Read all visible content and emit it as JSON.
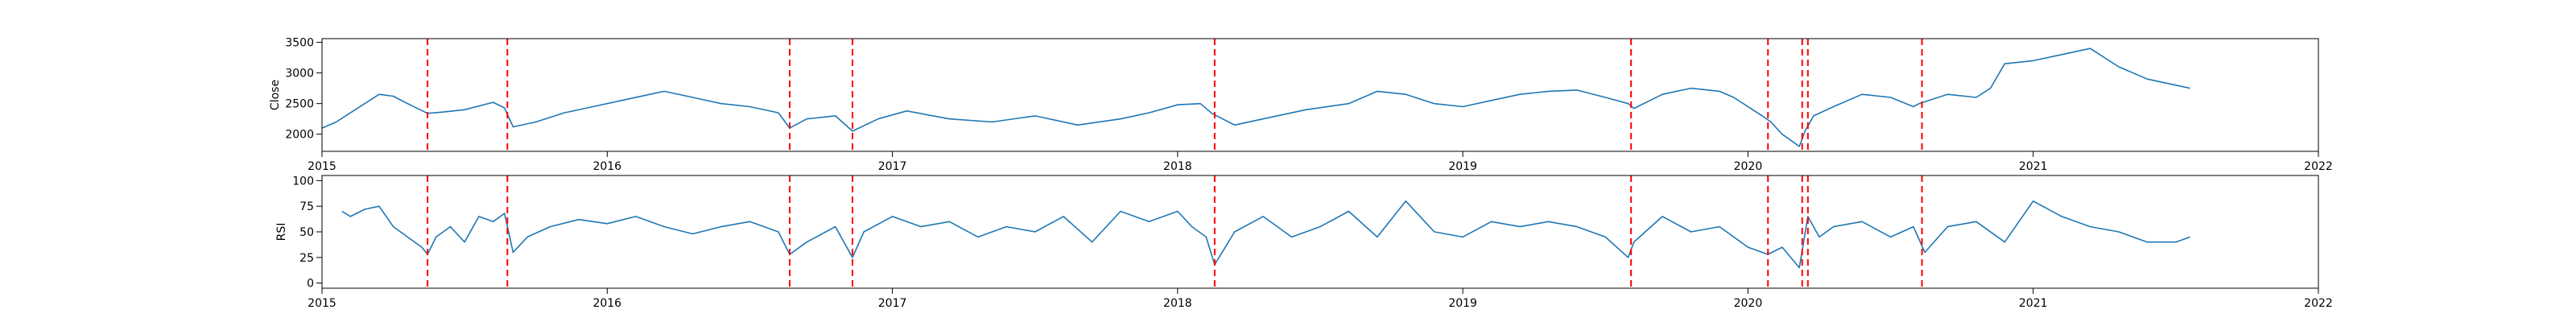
{
  "chart_data": [
    {
      "type": "line",
      "ylabel": "Close",
      "xlim": [
        2015.0,
        2022.0
      ],
      "ylim": [
        1720,
        3560
      ],
      "xticks": [
        2015,
        2016,
        2017,
        2018,
        2019,
        2020,
        2021,
        2022
      ],
      "xtick_labels": [
        "2015",
        "2016",
        "2017",
        "2018",
        "2019",
        "2020",
        "2021",
        "2022"
      ],
      "yticks": [
        2000,
        2500,
        3000,
        3500
      ],
      "ytick_labels": [
        "2000",
        "2500",
        "3000",
        "3500"
      ],
      "grid": false,
      "series": [
        {
          "color": "#1f77b4",
          "x": [
            2015.0,
            2015.05,
            2015.1,
            2015.15,
            2015.2,
            2015.25,
            2015.3,
            2015.37,
            2015.42,
            2015.5,
            2015.6,
            2015.64,
            2015.67,
            2015.75,
            2015.85,
            2015.95,
            2016.05,
            2016.15,
            2016.2,
            2016.3,
            2016.4,
            2016.5,
            2016.6,
            2016.64,
            2016.7,
            2016.8,
            2016.86,
            2016.95,
            2017.05,
            2017.2,
            2017.35,
            2017.5,
            2017.65,
            2017.8,
            2017.9,
            2018.0,
            2018.08,
            2018.12,
            2018.2,
            2018.3,
            2018.45,
            2018.6,
            2018.7,
            2018.8,
            2018.9,
            2019.0,
            2019.1,
            2019.2,
            2019.3,
            2019.4,
            2019.5,
            2019.58,
            2019.6,
            2019.7,
            2019.8,
            2019.9,
            2019.95,
            2020.05,
            2020.08,
            2020.12,
            2020.18,
            2020.2,
            2020.23,
            2020.3,
            2020.4,
            2020.5,
            2020.58,
            2020.6,
            2020.7,
            2020.8,
            2020.85,
            2020.9,
            2021.0,
            2021.1,
            2021.2,
            2021.3,
            2021.4,
            2021.5,
            2021.55
          ],
          "y": [
            2100,
            2200,
            2350,
            2500,
            2650,
            2620,
            2500,
            2340,
            2360,
            2400,
            2520,
            2430,
            2120,
            2200,
            2350,
            2450,
            2550,
            2650,
            2700,
            2600,
            2500,
            2450,
            2350,
            2100,
            2250,
            2300,
            2050,
            2250,
            2380,
            2250,
            2200,
            2300,
            2150,
            2250,
            2350,
            2480,
            2500,
            2340,
            2150,
            2250,
            2400,
            2500,
            2700,
            2650,
            2500,
            2450,
            2550,
            2650,
            2700,
            2720,
            2600,
            2500,
            2420,
            2650,
            2750,
            2700,
            2600,
            2300,
            2200,
            2000,
            1800,
            2050,
            2300,
            2450,
            2650,
            2600,
            2450,
            2500,
            2650,
            2600,
            2750,
            3150,
            3200,
            3300,
            3400,
            3100,
            2900,
            2800,
            2750
          ]
        }
      ]
    },
    {
      "type": "line",
      "ylabel": "RSI",
      "xlim": [
        2015.0,
        2022.0
      ],
      "ylim": [
        -5,
        105
      ],
      "xticks": [
        2015,
        2016,
        2017,
        2018,
        2019,
        2020,
        2021,
        2022
      ],
      "xtick_labels": [
        "2015",
        "2016",
        "2017",
        "2018",
        "2019",
        "2020",
        "2021",
        "2022"
      ],
      "yticks": [
        0,
        25,
        50,
        75,
        100
      ],
      "ytick_labels": [
        "0",
        "25",
        "50",
        "75",
        "100"
      ],
      "grid": false,
      "series": [
        {
          "color": "#1f77b4",
          "x": [
            2015.07,
            2015.1,
            2015.15,
            2015.2,
            2015.25,
            2015.3,
            2015.35,
            2015.37,
            2015.4,
            2015.45,
            2015.5,
            2015.55,
            2015.6,
            2015.64,
            2015.67,
            2015.72,
            2015.8,
            2015.9,
            2016.0,
            2016.1,
            2016.2,
            2016.3,
            2016.4,
            2016.5,
            2016.6,
            2016.64,
            2016.7,
            2016.8,
            2016.86,
            2016.9,
            2017.0,
            2017.1,
            2017.2,
            2017.3,
            2017.4,
            2017.5,
            2017.6,
            2017.7,
            2017.8,
            2017.9,
            2018.0,
            2018.05,
            2018.1,
            2018.13,
            2018.2,
            2018.3,
            2018.4,
            2018.5,
            2018.6,
            2018.7,
            2018.8,
            2018.9,
            2019.0,
            2019.1,
            2019.2,
            2019.3,
            2019.4,
            2019.5,
            2019.58,
            2019.6,
            2019.7,
            2019.8,
            2019.9,
            2020.0,
            2020.07,
            2020.12,
            2020.18,
            2020.21,
            2020.25,
            2020.3,
            2020.4,
            2020.5,
            2020.58,
            2020.62,
            2020.7,
            2020.8,
            2020.9,
            2021.0,
            2021.1,
            2021.2,
            2021.3,
            2021.4,
            2021.5,
            2021.55
          ],
          "y": [
            70,
            65,
            72,
            75,
            55,
            45,
            35,
            28,
            45,
            55,
            40,
            65,
            60,
            68,
            30,
            45,
            55,
            62,
            58,
            65,
            55,
            48,
            55,
            60,
            50,
            28,
            40,
            55,
            25,
            50,
            65,
            55,
            60,
            45,
            55,
            50,
            65,
            40,
            70,
            60,
            70,
            55,
            45,
            18,
            50,
            65,
            45,
            55,
            70,
            45,
            80,
            50,
            45,
            60,
            55,
            60,
            55,
            45,
            25,
            40,
            65,
            50,
            55,
            35,
            28,
            35,
            15,
            65,
            45,
            55,
            60,
            45,
            55,
            30,
            55,
            60,
            40,
            80,
            65,
            55,
            50,
            40,
            40,
            45
          ]
        }
      ]
    }
  ],
  "event_markers_x": [
    2015.37,
    2015.65,
    2016.64,
    2016.86,
    2018.13,
    2019.59,
    2020.07,
    2020.19,
    2020.21,
    2020.61
  ]
}
